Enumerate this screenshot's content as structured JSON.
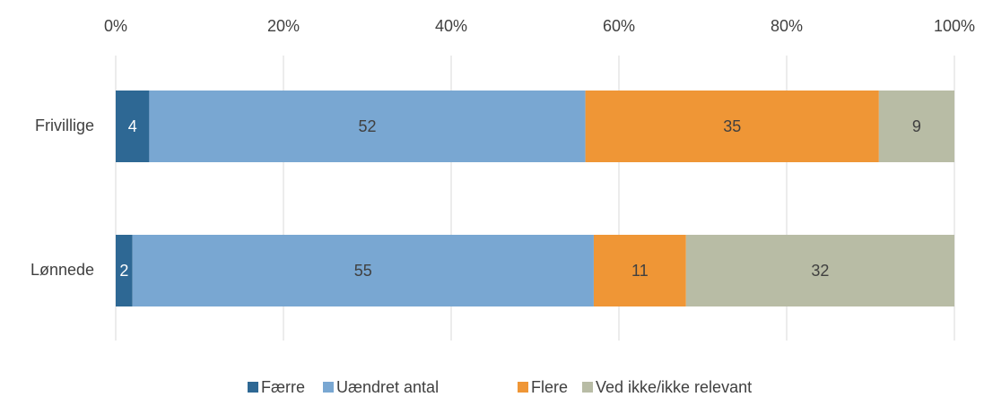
{
  "chart_data": {
    "type": "stacked_bar_horizontal",
    "categories": [
      "Frivillige",
      "Lønnede"
    ],
    "series": [
      {
        "name": "Færre",
        "color": "#2e6894",
        "values": [
          4,
          2
        ]
      },
      {
        "name": "Uændret antal",
        "color": "#79a7d2",
        "values": [
          52,
          55
        ]
      },
      {
        "name": "Flere",
        "color": "#ef9636",
        "values": [
          35,
          11
        ]
      },
      {
        "name": "Ved ikke/ikke relevant",
        "color": "#b8bca5",
        "values": [
          9,
          32
        ]
      }
    ],
    "xlim": [
      0,
      100
    ],
    "xticks": [
      {
        "value": 0,
        "label": "0%"
      },
      {
        "value": 20,
        "label": "20%"
      },
      {
        "value": 40,
        "label": "40%"
      },
      {
        "value": 60,
        "label": "60%"
      },
      {
        "value": 80,
        "label": "80%"
      },
      {
        "value": 100,
        "label": "100%"
      }
    ],
    "grid": true,
    "legend": "bottom"
  }
}
